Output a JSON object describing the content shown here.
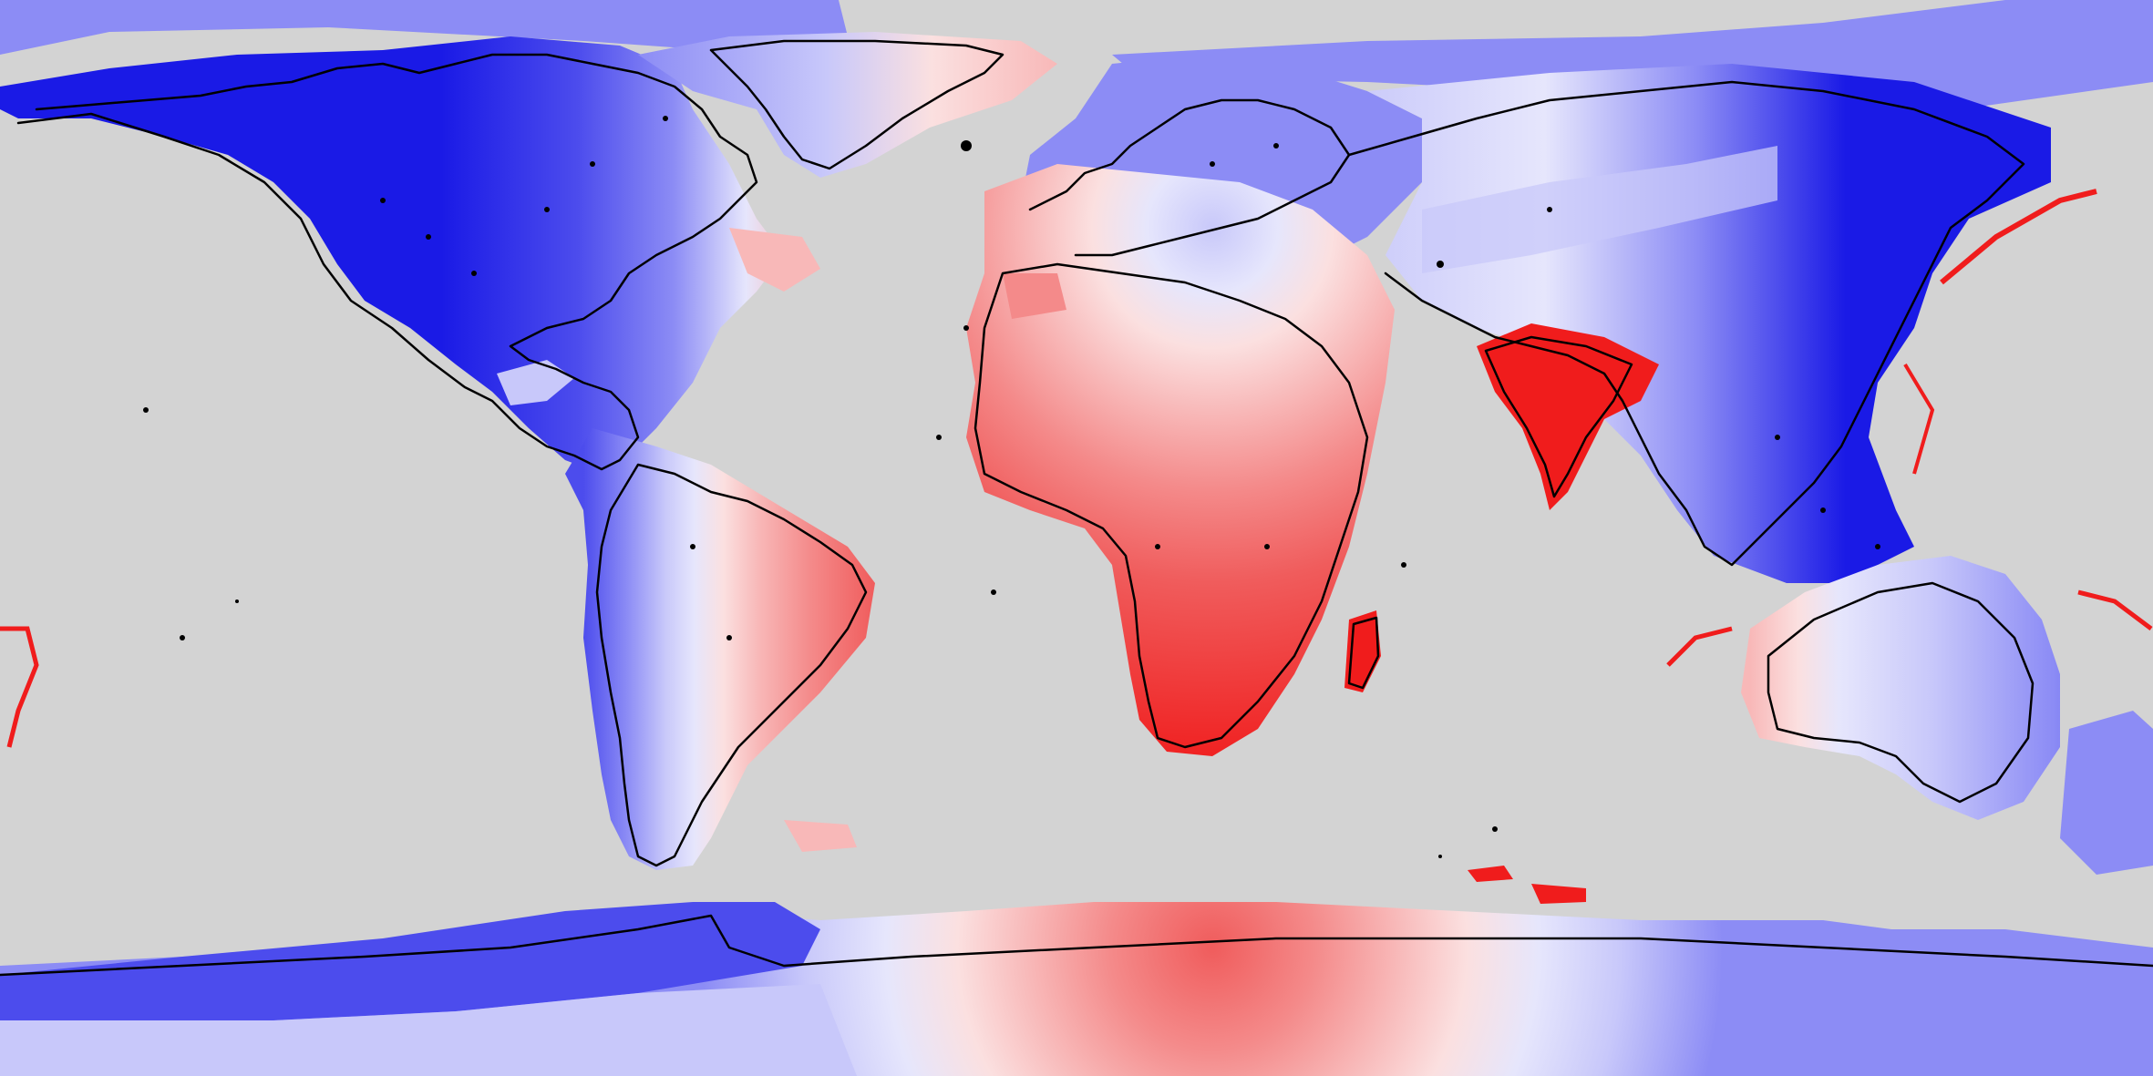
{
  "map": {
    "projection": "equirectangular",
    "background_color": "#d3d3d3",
    "coastline_color": "#000000",
    "palette": {
      "blue_strong": "#1a1ae6",
      "blue_mid": "#4c4ced",
      "blue_light": "#8c8cf5",
      "blue_pale": "#c8c8fa",
      "blue_faint": "#e6e6fc",
      "red_faint": "#fbe0e0",
      "red_pale": "#f8b8b8",
      "red_light": "#f48a8a",
      "red_mid": "#f05c5c",
      "red_strong": "#f01c1c"
    },
    "regions": [
      {
        "name": "north-america",
        "level": "blue_strong"
      },
      {
        "name": "greenland",
        "level": "blue_pale"
      },
      {
        "name": "south-america-west",
        "level": "blue_light"
      },
      {
        "name": "south-america-east",
        "level": "red_mid"
      },
      {
        "name": "africa",
        "level": "red_strong"
      },
      {
        "name": "europe",
        "level": "blue_light"
      },
      {
        "name": "russia-north-asia",
        "level": "blue_pale"
      },
      {
        "name": "east-asia",
        "level": "blue_strong"
      },
      {
        "name": "india",
        "level": "red_strong"
      },
      {
        "name": "australia",
        "level": "blue_pale"
      },
      {
        "name": "antarctica-west",
        "level": "blue_mid"
      },
      {
        "name": "antarctica-east",
        "level": "red_mid"
      }
    ]
  }
}
